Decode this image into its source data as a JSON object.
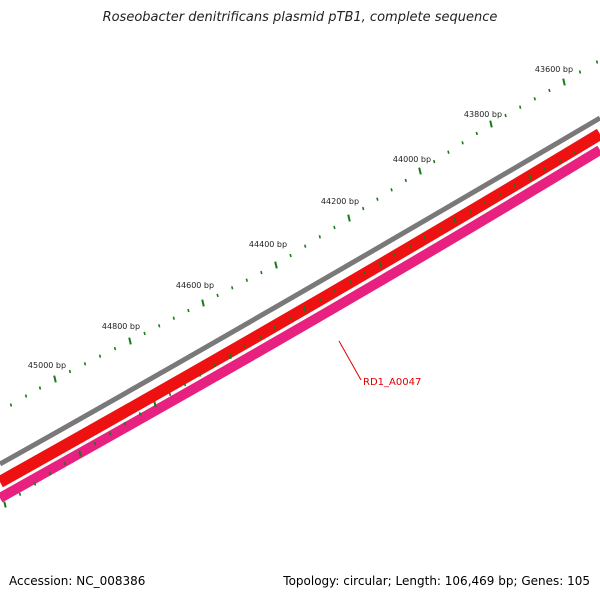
{
  "title": "Roseobacter denitrificans plasmid pTB1, complete sequence",
  "accession_text": "Accession: NC_008386",
  "summary_text": "Topology: circular; Length: 106,469 bp; Genes: 105",
  "ruler": {
    "labels": [
      "43600 bp",
      "43800 bp",
      "44000 bp",
      "44200 bp",
      "44400 bp",
      "44600 bp",
      "44800 bp",
      "45000 bp"
    ],
    "tick_color": "#1a7a1a"
  },
  "tracks": {
    "backbone_color": "#7a7878",
    "forward_cds_color": "#ee1111",
    "reverse_cds_color": "#e8207f",
    "gc_tick_color": "#1a7a1a"
  },
  "gene_label": {
    "text": "RD1_A0047",
    "color": "#dd0000"
  }
}
